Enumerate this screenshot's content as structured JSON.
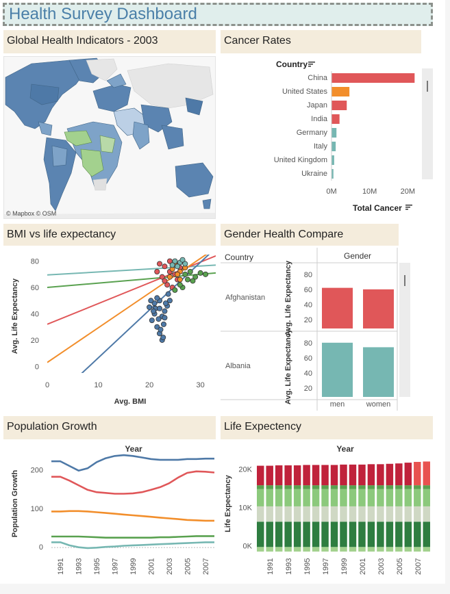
{
  "dashboard": {
    "title": "Health Survey Dashboard"
  },
  "panels": {
    "map": {
      "title": "Global Health Indicators - 2003",
      "credit": "© Mapbox © OSM"
    },
    "cancer": {
      "title": "Cancer Rates"
    },
    "bmi": {
      "title": "BMI vs life expectancy"
    },
    "gender": {
      "title": "Gender Health Compare"
    },
    "population": {
      "title": "Population Growth"
    },
    "life": {
      "title": "Life Expectency"
    }
  },
  "colors": {
    "header_bg": "#f4ecdc",
    "title_text": "#4a7fa8",
    "red": "#e05759",
    "orange": "#f28e2b",
    "teal": "#76b7b2",
    "blue": "#4e79a7",
    "green": "#59a14f",
    "map_blue": "#5b84b1",
    "map_green": "#a3d18e"
  },
  "chart_data": [
    {
      "id": "cancer",
      "type": "bar",
      "orientation": "horizontal",
      "row_header": "Country",
      "xlabel": "Total Cancer",
      "categories": [
        "China",
        "United States",
        "Japan",
        "India",
        "Germany",
        "Italy",
        "United Kingdom",
        "Ukraine"
      ],
      "values": [
        21800000,
        4700000,
        4000000,
        2100000,
        1300000,
        1100000,
        700000,
        500000
      ],
      "colors": [
        "#e05759",
        "#f28e2b",
        "#e05759",
        "#e05759",
        "#76b7b2",
        "#76b7b2",
        "#76b7b2",
        "#76b7b2"
      ],
      "xticks": [
        {
          "value": 0,
          "label": "0M"
        },
        {
          "value": 10000000,
          "label": "10M"
        },
        {
          "value": 20000000,
          "label": "20M"
        }
      ],
      "xlim": [
        0,
        23000000
      ]
    },
    {
      "id": "bmi",
      "type": "scatter",
      "xlabel": "Avg. BMI",
      "ylabel": "Avg. Life Expectancy",
      "xlim": [
        0,
        33
      ],
      "ylim": [
        -5,
        85
      ],
      "xticks": [
        0,
        10,
        20,
        30
      ],
      "yticks": [
        0,
        20,
        40,
        60,
        80
      ],
      "trend_lines": [
        {
          "color": "#76b7b2",
          "from": [
            0,
            69.5
          ],
          "to": [
            33,
            77
          ]
        },
        {
          "color": "#59a14f",
          "from": [
            0,
            60
          ],
          "to": [
            33,
            71
          ]
        },
        {
          "color": "#e05759",
          "from": [
            0,
            32
          ],
          "to": [
            33,
            84
          ]
        },
        {
          "color": "#f28e2b",
          "from": [
            0,
            3
          ],
          "to": [
            33,
            90
          ]
        },
        {
          "color": "#4e79a7",
          "from": [
            6,
            -8
          ],
          "to": [
            33,
            90
          ]
        }
      ],
      "clusters": [
        {
          "color": "#4e79a7",
          "points": [
            [
              20,
              45
            ],
            [
              21,
              40
            ],
            [
              20.5,
              35
            ],
            [
              21.5,
              30
            ],
            [
              22,
              25
            ],
            [
              22.5,
              20
            ],
            [
              21,
              48
            ],
            [
              22,
              50
            ],
            [
              23,
              42
            ],
            [
              22.5,
              38
            ],
            [
              21.8,
              36
            ],
            [
              23.5,
              46
            ],
            [
              22.8,
              32
            ],
            [
              21.2,
              44
            ],
            [
              20.8,
              42
            ],
            [
              23.2,
              48
            ],
            [
              22.2,
              28
            ],
            [
              22.7,
              22
            ],
            [
              23,
              37
            ],
            [
              24,
              50
            ],
            [
              21.5,
              52
            ],
            [
              22,
              44
            ],
            [
              20.3,
              50
            ],
            [
              23.7,
              55
            ]
          ]
        },
        {
          "color": "#e05759",
          "points": [
            [
              22,
              78
            ],
            [
              23,
              76
            ],
            [
              24,
              72
            ],
            [
              22.5,
              68
            ],
            [
              25,
              70
            ],
            [
              24.5,
              60
            ],
            [
              23.5,
              62
            ],
            [
              26,
              75
            ],
            [
              21.5,
              72
            ],
            [
              24,
              80
            ],
            [
              25.5,
              66
            ],
            [
              23,
              65
            ]
          ]
        },
        {
          "color": "#f28e2b",
          "points": [
            [
              24.5,
              74
            ],
            [
              25,
              78
            ],
            [
              26,
              72
            ],
            [
              25.5,
              70
            ],
            [
              26.5,
              80
            ],
            [
              27,
              75
            ],
            [
              24,
              68
            ],
            [
              26,
              66
            ]
          ]
        },
        {
          "color": "#59a14f",
          "points": [
            [
              27,
              70
            ],
            [
              28,
              72
            ],
            [
              29,
              68
            ],
            [
              30,
              71
            ],
            [
              28.5,
              65
            ],
            [
              26.5,
              60
            ],
            [
              27.5,
              66
            ],
            [
              25,
              58
            ],
            [
              31,
              70
            ],
            [
              26,
              62
            ]
          ]
        },
        {
          "color": "#76b7b2",
          "points": [
            [
              25,
              80
            ],
            [
              26,
              79
            ],
            [
              24.5,
              77
            ],
            [
              26.5,
              81
            ],
            [
              25.5,
              76
            ],
            [
              27,
              78
            ]
          ]
        }
      ]
    },
    {
      "id": "gender",
      "type": "bar",
      "row_header": "Country",
      "column_header": "Gender",
      "ylabel": "Avg. Life Expectancy",
      "categories": [
        "men",
        "women"
      ],
      "yticks": [
        20,
        40,
        60,
        80
      ],
      "ylim": [
        8,
        88
      ],
      "rows": [
        {
          "country": "Afghanistan",
          "values": [
            62,
            60
          ],
          "color": "#e05759"
        },
        {
          "country": "Albania",
          "values": [
            80,
            74
          ],
          "color": "#76b7b2"
        }
      ]
    },
    {
      "id": "population",
      "type": "line",
      "header": "Year",
      "ylabel": "Population Growth",
      "x": [
        1990,
        1991,
        1992,
        1993,
        1994,
        1995,
        1996,
        1997,
        1998,
        1999,
        2000,
        2001,
        2002,
        2003,
        2004,
        2005,
        2006,
        2007,
        2008
      ],
      "xticks": [
        "1991",
        "1993",
        "1995",
        "1997",
        "1999",
        "2001",
        "2003",
        "2005",
        "2007"
      ],
      "yticks": [
        0,
        100,
        200
      ],
      "ylim": [
        -5,
        240
      ],
      "series": [
        {
          "color": "#4e79a7",
          "values": [
            222,
            222,
            210,
            198,
            204,
            220,
            230,
            236,
            238,
            236,
            232,
            228,
            226,
            226,
            226,
            228,
            228,
            229,
            229
          ]
        },
        {
          "color": "#e05759",
          "values": [
            182,
            182,
            172,
            160,
            148,
            142,
            140,
            138,
            138,
            139,
            142,
            148,
            155,
            165,
            180,
            192,
            196,
            195,
            193
          ]
        },
        {
          "color": "#f28e2b",
          "values": [
            92,
            92,
            93,
            93,
            92,
            90,
            88,
            86,
            84,
            82,
            80,
            78,
            76,
            74,
            72,
            70,
            69,
            68,
            68
          ]
        },
        {
          "color": "#59a14f",
          "values": [
            27,
            27,
            27,
            27,
            26,
            25,
            24,
            24,
            24,
            24,
            24,
            24,
            25,
            25,
            26,
            27,
            28,
            28,
            28
          ]
        },
        {
          "color": "#76b7b2",
          "values": [
            12,
            12,
            4,
            -1,
            -3,
            -2,
            0,
            1,
            3,
            4,
            5,
            6,
            7,
            8,
            9,
            10,
            11,
            12,
            12
          ]
        }
      ]
    },
    {
      "id": "life",
      "type": "bar",
      "stacked": true,
      "header": "Year",
      "ylabel": "Life Expectancy",
      "x": [
        1990,
        1991,
        1992,
        1993,
        1994,
        1995,
        1996,
        1997,
        1998,
        1999,
        2000,
        2001,
        2002,
        2003,
        2004,
        2005,
        2006,
        2007,
        2008
      ],
      "xticks": [
        "1991",
        "1993",
        "1995",
        "1997",
        "1999",
        "2001",
        "2003",
        "2005",
        "2007"
      ],
      "yticks": [
        {
          "value": 0,
          "label": "0K"
        },
        {
          "value": 10000,
          "label": "10K"
        },
        {
          "value": 20000,
          "label": "20K"
        }
      ],
      "ylim": [
        -1500,
        23500
      ],
      "stack_colors": [
        "#a3d18e",
        "#2e7d40",
        "#cfd8c4",
        "#8cc97c",
        "#59a14f",
        "#c0223b"
      ],
      "stack_values": [
        [
          1200,
          1200,
          1200,
          1200,
          1200,
          1200,
          1200,
          1200,
          1200,
          1200,
          1200,
          1200,
          1200,
          1200,
          1200,
          1200,
          1200,
          1200,
          1200
        ],
        [
          6600,
          6600,
          6600,
          6600,
          6600,
          6600,
          6600,
          6600,
          6600,
          6600,
          6600,
          6600,
          6600,
          6600,
          6600,
          6600,
          6600,
          6600,
          6600
        ],
        [
          4000,
          4000,
          4000,
          4000,
          4000,
          4000,
          4000,
          4000,
          4000,
          4000,
          4000,
          4000,
          4000,
          4000,
          4000,
          4000,
          4000,
          4000,
          4000
        ],
        [
          4500,
          4500,
          4500,
          4500,
          4500,
          4500,
          4500,
          4500,
          4500,
          4500,
          4500,
          4500,
          4500,
          4500,
          4500,
          4500,
          4500,
          4500,
          4500
        ],
        [
          1000,
          1000,
          1000,
          1000,
          1000,
          1000,
          1000,
          1000,
          1000,
          1000,
          1000,
          1000,
          1000,
          1000,
          1000,
          1000,
          1000,
          1000,
          1000
        ],
        [
          5100,
          5100,
          5200,
          5200,
          5200,
          5300,
          5300,
          5300,
          5300,
          5400,
          5400,
          5400,
          5500,
          5500,
          5600,
          5700,
          5900,
          6100,
          6200
        ]
      ],
      "top_highlight": {
        "color": "#e8524f",
        "from_index": 17
      }
    }
  ]
}
